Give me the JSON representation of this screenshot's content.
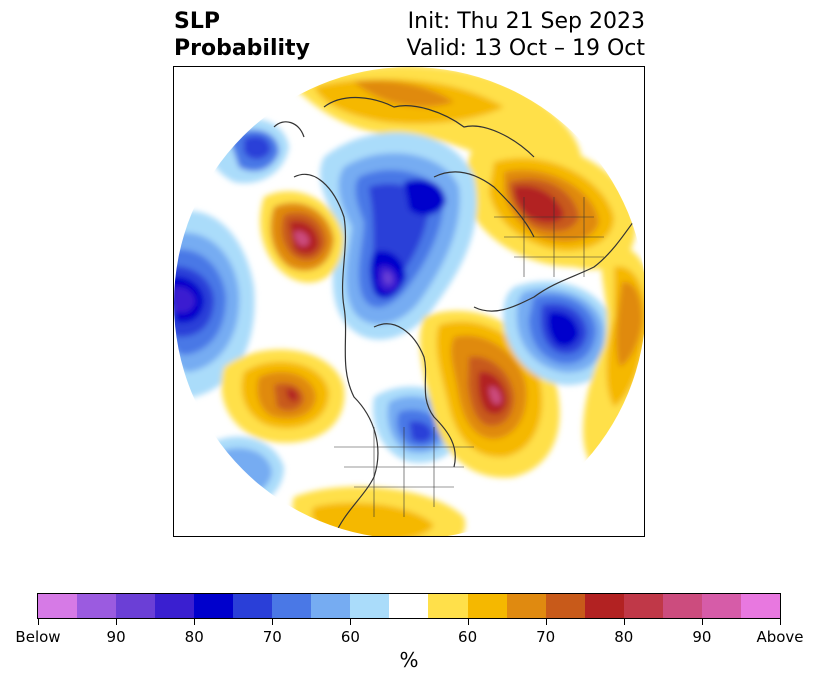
{
  "title": {
    "variable": "SLP",
    "metric": "Probability",
    "init": "Init: Thu 21 Sep 2023",
    "valid": "Valid: 13 Oct – 19 Oct"
  },
  "map": {
    "projection": "north-polar-stereographic",
    "field": "sea level pressure tercile probability",
    "coastlines": true,
    "borders": true
  },
  "colorbar": {
    "label": "%",
    "ticks": [
      "Below",
      "90",
      "80",
      "70",
      "60",
      "60",
      "70",
      "80",
      "90",
      "Above"
    ],
    "colors": [
      "#d67ae6",
      "#9b5be0",
      "#6b3fd6",
      "#3a1fd0",
      "#0000cc",
      "#2a3fd8",
      "#4a78e6",
      "#76acf2",
      "#aadcfa",
      "#ffffff",
      "#ffe04a",
      "#f5b800",
      "#e08a10",
      "#c85a1a",
      "#b22222",
      "#c03848",
      "#cc4c7e",
      "#d65ca8",
      "#e878e0"
    ]
  }
}
